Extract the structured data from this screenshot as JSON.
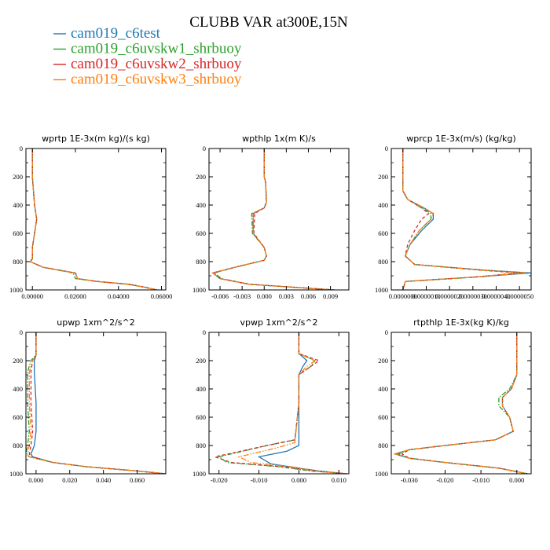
{
  "figure": {
    "title": "CLUBB VAR at300E,15N",
    "legend": [
      {
        "label": "cam019_c6test",
        "color": "#1f77b4",
        "dash": "solid"
      },
      {
        "label": "cam019_c6uvskw1_shrbuoy",
        "color": "#2ca02c",
        "dash": "dashdot"
      },
      {
        "label": "cam019_c6uvskw2_shrbuoy",
        "color": "#d62728",
        "dash": "dash"
      },
      {
        "label": "cam019_c6uvskw3_shrbuoy",
        "color": "#ff7f0e",
        "dash": "dashdotdot"
      }
    ]
  },
  "chart_data": [
    {
      "type": "line",
      "title": "wprtp  1E-3x(m kg)/(s kg)",
      "xlim": [
        -0.003,
        0.062
      ],
      "ylim": [
        1000,
        0
      ],
      "xticks": [
        "0.00000",
        "0.02000",
        "0.04000",
        "0.06000"
      ],
      "xtick_values": [
        0.0,
        0.02,
        0.04,
        0.06
      ],
      "yticks": [
        0,
        200,
        400,
        600,
        800,
        1000
      ],
      "series": [
        {
          "name": "cam019_c6test",
          "x": [
            0.0,
            0.0,
            0.001,
            0.002,
            0.001,
            0.0,
            0.0,
            -0.001,
            0.005,
            0.02,
            0.021,
            0.03,
            0.045,
            0.052,
            0.058
          ],
          "y": [
            0,
            200,
            400,
            500,
            600,
            700,
            780,
            800,
            840,
            880,
            920,
            940,
            960,
            980,
            1000
          ]
        },
        {
          "name": "cam019_c6uvskw1_shrbuoy",
          "x": [
            0.0,
            0.0,
            0.001,
            0.002,
            0.001,
            0.0,
            0.0,
            -0.001,
            0.005,
            0.019,
            0.02,
            0.03,
            0.044,
            0.052,
            0.057
          ],
          "y": [
            0,
            200,
            400,
            500,
            600,
            700,
            780,
            800,
            840,
            880,
            920,
            940,
            960,
            980,
            1000
          ]
        },
        {
          "name": "cam019_c6uvskw2_shrbuoy",
          "x": [
            0.0,
            0.0,
            0.001,
            0.002,
            0.001,
            0.0,
            0.0,
            -0.001,
            0.005,
            0.02,
            0.021,
            0.03,
            0.045,
            0.052,
            0.058
          ],
          "y": [
            0,
            200,
            400,
            500,
            600,
            700,
            780,
            800,
            840,
            880,
            920,
            940,
            960,
            980,
            1000
          ]
        },
        {
          "name": "cam019_c6uvskw3_shrbuoy",
          "x": [
            0.0,
            0.0,
            0.001,
            0.002,
            0.001,
            0.0,
            0.0,
            -0.001,
            0.005,
            0.02,
            0.021,
            0.03,
            0.045,
            0.052,
            0.058
          ],
          "y": [
            0,
            200,
            400,
            500,
            600,
            700,
            780,
            800,
            840,
            880,
            920,
            940,
            960,
            980,
            1000
          ]
        }
      ]
    },
    {
      "type": "line",
      "title": "wpthlp  1x(m K)/s",
      "xlim": [
        -0.0075,
        0.0115
      ],
      "ylim": [
        1000,
        0
      ],
      "xticks": [
        "-0.006",
        "-0.003",
        "0.000",
        "0.003",
        "0.006",
        "0.009"
      ],
      "xtick_values": [
        -0.006,
        -0.003,
        0.0,
        0.003,
        0.006,
        0.009
      ],
      "yticks": [
        0,
        200,
        400,
        600,
        800,
        1000
      ],
      "series": [
        {
          "name": "cam019_c6test",
          "x": [
            0.0,
            0.0,
            0.0002,
            0.0003,
            0.0,
            -0.0015,
            -0.0015,
            0.0,
            0.0003,
            0.0,
            -0.004,
            -0.007,
            -0.006,
            -0.002,
            0.0095
          ],
          "y": [
            0,
            200,
            240,
            380,
            420,
            460,
            600,
            700,
            760,
            790,
            840,
            880,
            920,
            960,
            1000
          ]
        },
        {
          "name": "cam019_c6uvskw1_shrbuoy",
          "x": [
            0.0,
            0.0,
            0.0002,
            0.0003,
            0.0,
            -0.0017,
            -0.0016,
            0.0,
            0.0003,
            0.0,
            -0.004,
            -0.0068,
            -0.0058,
            -0.002,
            0.0095
          ],
          "y": [
            0,
            200,
            240,
            380,
            420,
            460,
            600,
            700,
            760,
            790,
            840,
            880,
            920,
            960,
            1000
          ]
        },
        {
          "name": "cam019_c6uvskw2_shrbuoy",
          "x": [
            0.0,
            0.0,
            0.0002,
            0.0003,
            0.0,
            -0.0013,
            -0.0014,
            0.0,
            0.0003,
            0.0,
            -0.004,
            -0.007,
            -0.006,
            -0.002,
            0.0095
          ],
          "y": [
            0,
            200,
            240,
            380,
            420,
            460,
            600,
            700,
            760,
            790,
            840,
            880,
            920,
            960,
            1000
          ]
        },
        {
          "name": "cam019_c6uvskw3_shrbuoy",
          "x": [
            0.0,
            0.0,
            0.0002,
            0.0003,
            0.0,
            -0.0015,
            -0.0015,
            0.0,
            0.0003,
            0.0,
            -0.004,
            -0.007,
            -0.006,
            -0.002,
            0.0095
          ],
          "y": [
            0,
            200,
            240,
            380,
            420,
            460,
            600,
            700,
            760,
            790,
            840,
            880,
            920,
            960,
            1000
          ]
        }
      ]
    },
    {
      "type": "line",
      "title": "wprcp  1E-3x(m/s) (kg/kg)",
      "xlim": [
        -5e-07,
        5.5e-06
      ],
      "ylim": [
        1000,
        0
      ],
      "xticks": [
        "0.0000000",
        "0.0000010",
        "0.0000020",
        "0.0000030",
        "0.0000040",
        "0.0000050"
      ],
      "xtick_values": [
        0.0,
        1e-06,
        2e-06,
        3e-06,
        4e-06,
        5e-06
      ],
      "yticks": [
        0,
        200,
        400,
        600,
        800,
        1000
      ],
      "series": [
        {
          "name": "cam019_c6test",
          "x": [
            0.0,
            0.0,
            2e-07,
            9e-07,
            1.3e-06,
            1.3e-06,
            8e-07,
            3e-07,
            1e-07,
            5e-07,
            3.5e-06,
            5.5e-06,
            3e-06,
            1e-07,
            0.0
          ],
          "y": [
            0,
            300,
            360,
            420,
            460,
            500,
            580,
            680,
            760,
            820,
            860,
            880,
            910,
            940,
            1000
          ]
        },
        {
          "name": "cam019_c6uvskw1_shrbuoy",
          "x": [
            0.0,
            0.0,
            2e-07,
            8e-07,
            1.2e-06,
            1.2e-06,
            7e-07,
            3e-07,
            1e-07,
            5e-07,
            3.4e-06,
            5.2e-06,
            3e-06,
            1e-07,
            0.0
          ],
          "y": [
            0,
            300,
            360,
            420,
            460,
            500,
            580,
            680,
            760,
            820,
            860,
            880,
            910,
            940,
            1000
          ]
        },
        {
          "name": "cam019_c6uvskw2_shrbuoy",
          "x": [
            0.0,
            0.0,
            2e-07,
            8e-07,
            1.1e-06,
            8e-07,
            5e-07,
            2e-07,
            1e-07,
            5e-07,
            3.3e-06,
            5e-06,
            3e-06,
            1e-07,
            0.0
          ],
          "y": [
            0,
            300,
            360,
            420,
            460,
            500,
            580,
            680,
            760,
            820,
            860,
            880,
            910,
            940,
            1000
          ]
        },
        {
          "name": "cam019_c6uvskw3_shrbuoy",
          "x": [
            0.0,
            0.0,
            2e-07,
            9e-07,
            1.3e-06,
            1.2e-06,
            7e-07,
            3e-07,
            1e-07,
            5e-07,
            3.4e-06,
            5.3e-06,
            3e-06,
            1e-07,
            0.0
          ],
          "y": [
            0,
            300,
            360,
            420,
            460,
            500,
            580,
            680,
            760,
            820,
            860,
            880,
            910,
            940,
            1000
          ]
        }
      ]
    },
    {
      "type": "line",
      "title": "upwp  1xm^2/s^2",
      "xlim": [
        -0.006,
        0.077
      ],
      "ylim": [
        1000,
        0
      ],
      "xticks": [
        "0.000",
        "0.020",
        "0.040",
        "0.060"
      ],
      "xtick_values": [
        0.0,
        0.02,
        0.04,
        0.06
      ],
      "yticks": [
        0,
        200,
        400,
        600,
        800,
        1000
      ],
      "series": [
        {
          "name": "cam019_c6test",
          "x": [
            0.0,
            0.0,
            -0.001,
            -0.001,
            0.0,
            0.0,
            -0.001,
            -0.003,
            -0.002,
            0.01,
            0.03,
            0.06,
            0.077
          ],
          "y": [
            0,
            160,
            200,
            280,
            500,
            700,
            800,
            860,
            880,
            920,
            950,
            980,
            1000
          ]
        },
        {
          "name": "cam019_c6uvskw1_shrbuoy",
          "x": [
            0.0,
            0.0,
            -0.003,
            -0.005,
            -0.005,
            -0.004,
            -0.005,
            -0.006,
            -0.004,
            0.01,
            0.03,
            0.06,
            0.077
          ],
          "y": [
            0,
            160,
            200,
            280,
            500,
            700,
            800,
            860,
            880,
            920,
            950,
            980,
            1000
          ]
        },
        {
          "name": "cam019_c6uvskw2_shrbuoy",
          "x": [
            0.0,
            0.0,
            -0.002,
            -0.003,
            -0.003,
            -0.002,
            -0.003,
            -0.004,
            -0.003,
            0.01,
            0.03,
            0.06,
            0.077
          ],
          "y": [
            0,
            160,
            200,
            280,
            500,
            700,
            800,
            860,
            880,
            920,
            950,
            980,
            1000
          ]
        },
        {
          "name": "cam019_c6uvskw3_shrbuoy",
          "x": [
            0.0,
            0.0,
            -0.002,
            -0.004,
            -0.004,
            -0.003,
            -0.004,
            -0.005,
            -0.004,
            0.01,
            0.03,
            0.06,
            0.077
          ],
          "y": [
            0,
            160,
            200,
            280,
            500,
            700,
            800,
            860,
            880,
            920,
            950,
            980,
            1000
          ]
        }
      ]
    },
    {
      "type": "line",
      "title": "vpwp  1xm^2/s^2",
      "xlim": [
        -0.0225,
        0.0125
      ],
      "ylim": [
        1000,
        0
      ],
      "xticks": [
        "-0.020",
        "-0.010",
        "0.000",
        "0.010"
      ],
      "xtick_values": [
        -0.02,
        -0.01,
        0.0,
        0.01
      ],
      "yticks": [
        0,
        200,
        400,
        600,
        800,
        1000
      ],
      "series": [
        {
          "name": "cam019_c6test",
          "x": [
            0.0,
            0.0,
            0.002,
            0.001,
            0.0,
            0.0,
            0.0,
            -0.003,
            -0.01,
            -0.007,
            0.0,
            0.005,
            0.012
          ],
          "y": [
            0,
            150,
            200,
            240,
            300,
            500,
            800,
            840,
            880,
            930,
            960,
            980,
            1000
          ]
        },
        {
          "name": "cam019_c6uvskw1_shrbuoy",
          "x": [
            0.0,
            0.0,
            0.004,
            0.003,
            0.0,
            0.0,
            -0.001,
            -0.008,
            -0.02,
            -0.018,
            -0.005,
            0.003,
            0.012
          ],
          "y": [
            0,
            150,
            200,
            240,
            300,
            500,
            760,
            800,
            880,
            920,
            950,
            980,
            1000
          ]
        },
        {
          "name": "cam019_c6uvskw2_shrbuoy",
          "x": [
            0.0,
            0.0,
            0.005,
            0.003,
            0.0,
            0.0,
            -0.001,
            -0.008,
            -0.021,
            -0.017,
            -0.004,
            0.004,
            0.012
          ],
          "y": [
            0,
            150,
            200,
            240,
            300,
            500,
            760,
            800,
            880,
            920,
            950,
            980,
            1000
          ]
        },
        {
          "name": "cam019_c6uvskw3_shrbuoy",
          "x": [
            0.0,
            0.0,
            0.004,
            0.002,
            0.0,
            0.0,
            -0.001,
            -0.006,
            -0.015,
            -0.012,
            -0.002,
            0.004,
            0.012
          ],
          "y": [
            0,
            150,
            200,
            240,
            300,
            500,
            780,
            820,
            880,
            920,
            950,
            980,
            1000
          ]
        }
      ]
    },
    {
      "type": "line",
      "title": "rtpthlp  1E-3x(kg K)/kg",
      "xlim": [
        -0.035,
        0.004
      ],
      "ylim": [
        1000,
        0
      ],
      "xticks": [
        "-0.030",
        "-0.020",
        "-0.010",
        "0.000"
      ],
      "xtick_values": [
        -0.03,
        -0.02,
        -0.01,
        0.0
      ],
      "yticks": [
        0,
        200,
        400,
        600,
        800,
        1000
      ],
      "series": [
        {
          "name": "cam019_c6test",
          "x": [
            0.0,
            0.0,
            -0.0015,
            -0.004,
            -0.004,
            -0.002,
            -0.001,
            -0.006,
            -0.02,
            -0.03,
            -0.034,
            -0.03,
            -0.02,
            -0.005,
            0.003
          ],
          "y": [
            0,
            300,
            400,
            460,
            520,
            600,
            700,
            760,
            800,
            830,
            860,
            890,
            920,
            960,
            1000
          ]
        },
        {
          "name": "cam019_c6uvskw1_shrbuoy",
          "x": [
            0.0,
            0.0,
            -0.002,
            -0.005,
            -0.005,
            -0.002,
            -0.001,
            -0.006,
            -0.02,
            -0.03,
            -0.033,
            -0.03,
            -0.02,
            -0.005,
            0.003
          ],
          "y": [
            0,
            300,
            400,
            460,
            520,
            600,
            700,
            760,
            800,
            830,
            860,
            890,
            920,
            960,
            1000
          ]
        },
        {
          "name": "cam019_c6uvskw2_shrbuoy",
          "x": [
            0.0,
            0.0,
            -0.0015,
            -0.004,
            -0.004,
            -0.002,
            -0.001,
            -0.006,
            -0.02,
            -0.03,
            -0.032,
            -0.03,
            -0.02,
            -0.005,
            0.003
          ],
          "y": [
            0,
            300,
            400,
            460,
            520,
            600,
            700,
            760,
            800,
            830,
            860,
            890,
            920,
            960,
            1000
          ]
        },
        {
          "name": "cam019_c6uvskw3_shrbuoy",
          "x": [
            0.0,
            0.0,
            -0.0015,
            -0.004,
            -0.004,
            -0.002,
            -0.001,
            -0.006,
            -0.02,
            -0.03,
            -0.034,
            -0.03,
            -0.02,
            -0.005,
            0.003
          ],
          "y": [
            0,
            300,
            400,
            460,
            520,
            600,
            700,
            760,
            800,
            830,
            860,
            890,
            920,
            960,
            1000
          ]
        }
      ]
    }
  ]
}
